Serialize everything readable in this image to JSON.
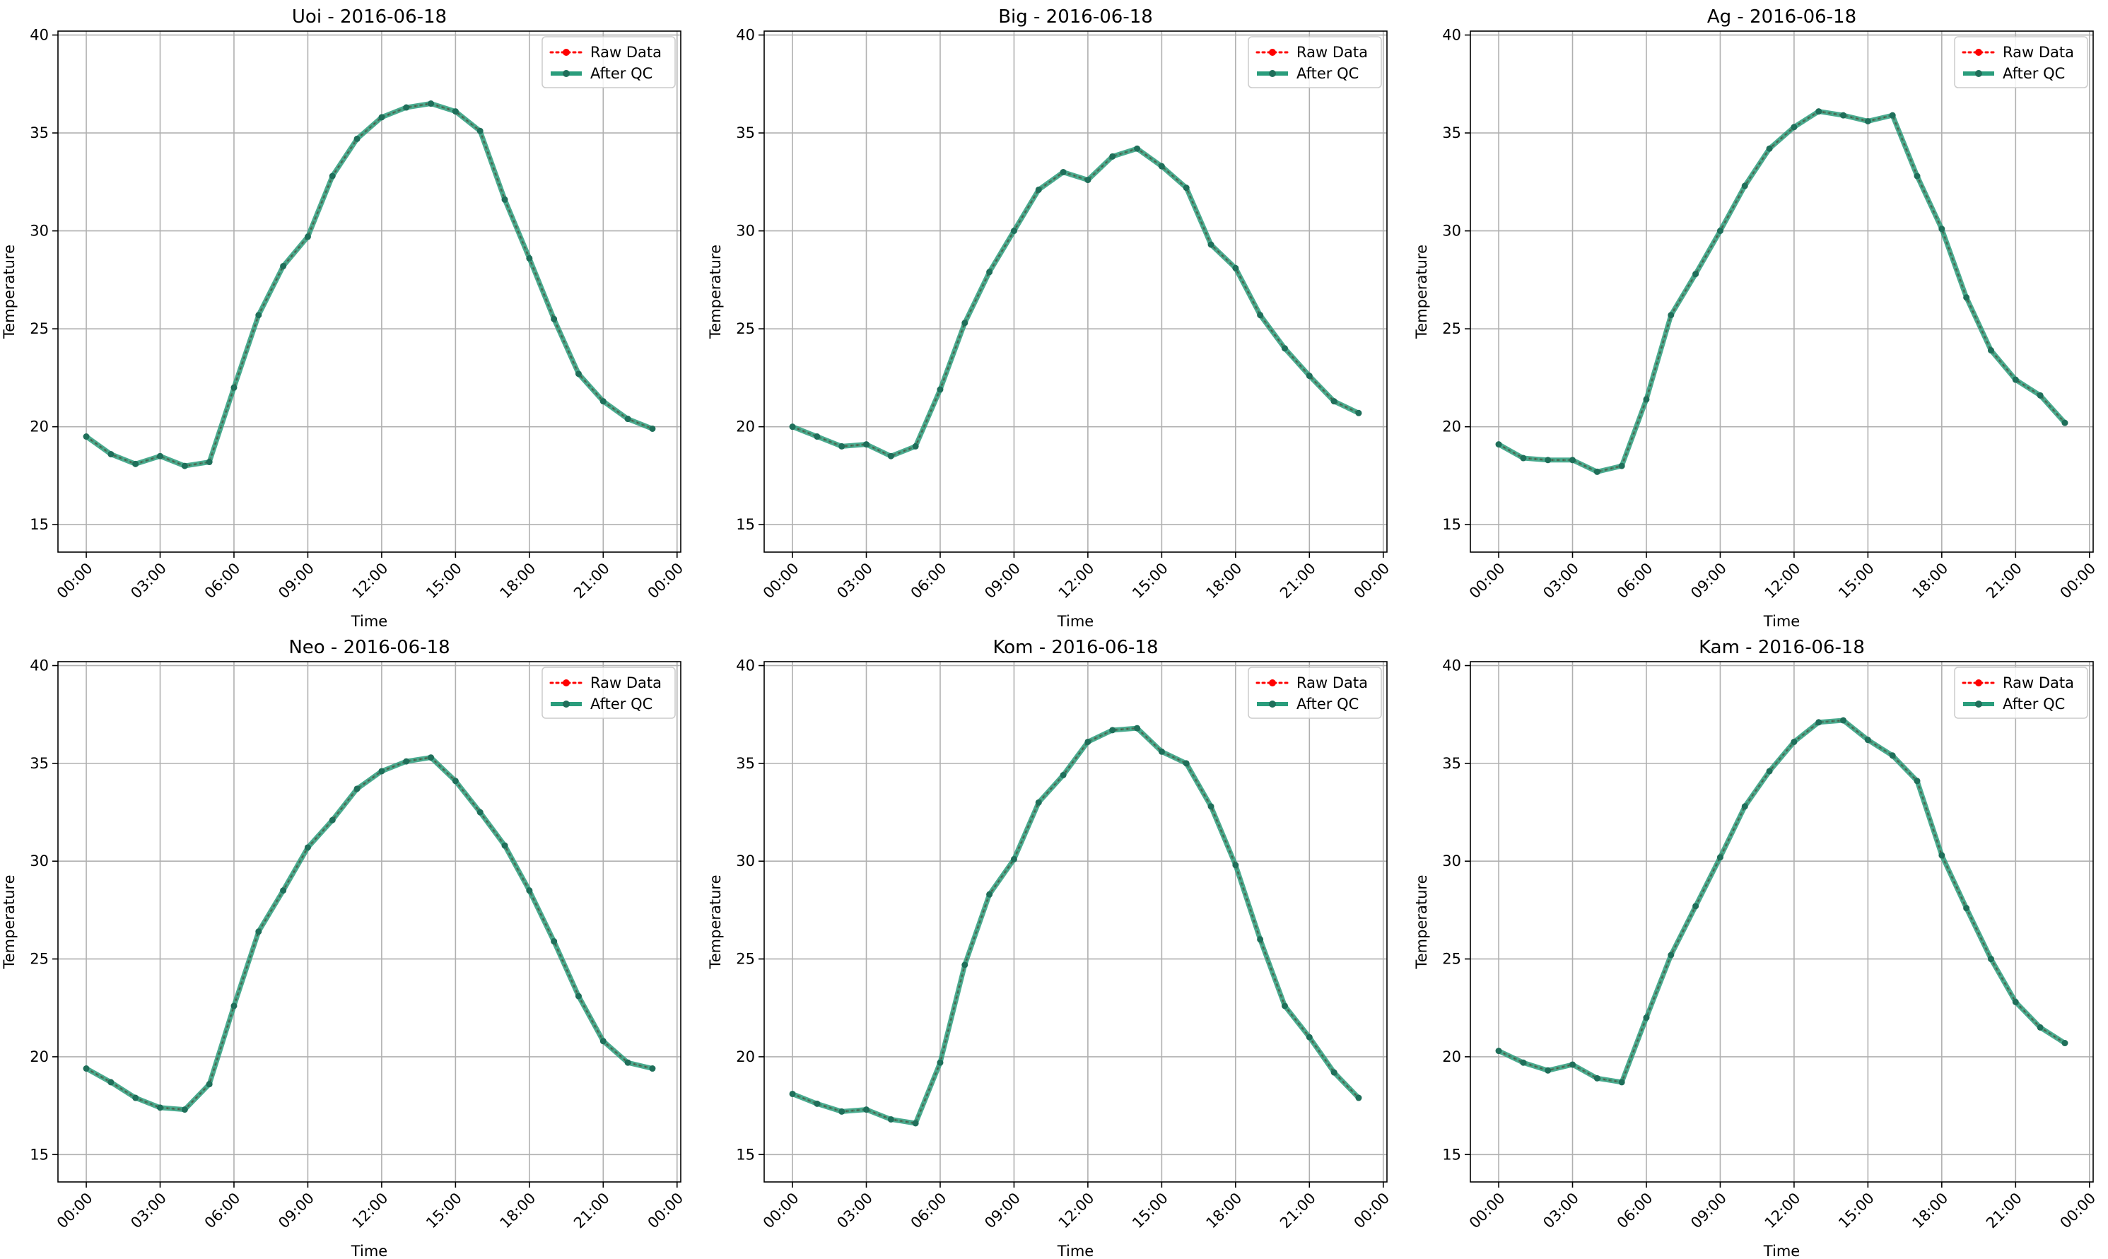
{
  "figure": {
    "raw_color": "#ff0000",
    "qc_color": "#2a9d7c",
    "marker_color": "#1f6f5a"
  },
  "chart_data": [
    {
      "type": "line",
      "title": "Uoi - 2016-06-18",
      "xlabel": "Time",
      "ylabel": "Temperature",
      "x_hours": [
        0,
        1,
        2,
        3,
        4,
        5,
        6,
        7,
        8,
        9,
        10,
        11,
        12,
        13,
        14,
        15,
        16,
        17,
        18,
        19,
        20,
        21,
        22,
        23
      ],
      "xticks": [
        "00:00",
        "03:00",
        "06:00",
        "09:00",
        "12:00",
        "15:00",
        "18:00",
        "21:00",
        "00:00"
      ],
      "xlim_hours": [
        -1.15,
        24.15
      ],
      "ylim": [
        13.6,
        40.2
      ],
      "yticks": [
        15,
        20,
        25,
        30,
        35,
        40
      ],
      "grid": true,
      "legend": "top-right",
      "series": [
        {
          "name": "Raw Data",
          "values": [
            19.5,
            18.6,
            18.1,
            18.5,
            18.0,
            18.2,
            22.0,
            25.7,
            28.2,
            29.7,
            32.8,
            34.7,
            35.8,
            36.3,
            36.5,
            36.1,
            35.1,
            31.6,
            28.6,
            25.5,
            22.7,
            21.3,
            20.4,
            19.9
          ]
        },
        {
          "name": "After QC",
          "values": [
            19.5,
            18.6,
            18.1,
            18.5,
            18.0,
            18.2,
            22.0,
            25.7,
            28.2,
            29.7,
            32.8,
            34.7,
            35.8,
            36.3,
            36.5,
            36.1,
            35.1,
            31.6,
            28.6,
            25.5,
            22.7,
            21.3,
            20.4,
            19.9
          ]
        }
      ]
    },
    {
      "type": "line",
      "title": "Big - 2016-06-18",
      "xlabel": "Time",
      "ylabel": "Temperature",
      "x_hours": [
        0,
        1,
        2,
        3,
        4,
        5,
        6,
        7,
        8,
        9,
        10,
        11,
        12,
        13,
        14,
        15,
        16,
        17,
        18,
        19,
        20,
        21,
        22,
        23
      ],
      "xticks": [
        "00:00",
        "03:00",
        "06:00",
        "09:00",
        "12:00",
        "15:00",
        "18:00",
        "21:00",
        "00:00"
      ],
      "xlim_hours": [
        -1.15,
        24.15
      ],
      "ylim": [
        13.6,
        40.2
      ],
      "yticks": [
        15,
        20,
        25,
        30,
        35,
        40
      ],
      "grid": true,
      "legend": "top-right",
      "series": [
        {
          "name": "Raw Data",
          "values": [
            20.0,
            19.5,
            19.0,
            19.1,
            18.5,
            19.0,
            21.9,
            25.3,
            27.9,
            30.0,
            32.1,
            33.0,
            32.6,
            33.8,
            34.2,
            33.3,
            32.2,
            29.3,
            28.1,
            25.7,
            24.0,
            22.6,
            21.3,
            20.7
          ]
        },
        {
          "name": "After QC",
          "values": [
            20.0,
            19.5,
            19.0,
            19.1,
            18.5,
            19.0,
            21.9,
            25.3,
            27.9,
            30.0,
            32.1,
            33.0,
            32.6,
            33.8,
            34.2,
            33.3,
            32.2,
            29.3,
            28.1,
            25.7,
            24.0,
            22.6,
            21.3,
            20.7
          ]
        }
      ]
    },
    {
      "type": "line",
      "title": "Ag - 2016-06-18",
      "xlabel": "Time",
      "ylabel": "Temperature",
      "x_hours": [
        0,
        1,
        2,
        3,
        4,
        5,
        6,
        7,
        8,
        9,
        10,
        11,
        12,
        13,
        14,
        15,
        16,
        17,
        18,
        19,
        20,
        21,
        22,
        23
      ],
      "xticks": [
        "00:00",
        "03:00",
        "06:00",
        "09:00",
        "12:00",
        "15:00",
        "18:00",
        "21:00",
        "00:00"
      ],
      "xlim_hours": [
        -1.15,
        24.15
      ],
      "ylim": [
        13.6,
        40.2
      ],
      "yticks": [
        15,
        20,
        25,
        30,
        35,
        40
      ],
      "grid": true,
      "legend": "top-right",
      "series": [
        {
          "name": "Raw Data",
          "values": [
            19.1,
            18.4,
            18.3,
            18.3,
            17.7,
            18.0,
            21.4,
            25.7,
            27.8,
            30.0,
            32.3,
            34.2,
            35.3,
            36.1,
            35.9,
            35.6,
            35.9,
            32.8,
            30.1,
            26.6,
            23.9,
            22.4,
            21.6,
            20.2
          ]
        },
        {
          "name": "After QC",
          "values": [
            19.1,
            18.4,
            18.3,
            18.3,
            17.7,
            18.0,
            21.4,
            25.7,
            27.8,
            30.0,
            32.3,
            34.2,
            35.3,
            36.1,
            35.9,
            35.6,
            35.9,
            32.8,
            30.1,
            26.6,
            23.9,
            22.4,
            21.6,
            20.2
          ]
        }
      ]
    },
    {
      "type": "line",
      "title": "Neo - 2016-06-18",
      "xlabel": "Time",
      "ylabel": "Temperature",
      "x_hours": [
        0,
        1,
        2,
        3,
        4,
        5,
        6,
        7,
        8,
        9,
        10,
        11,
        12,
        13,
        14,
        15,
        16,
        17,
        18,
        19,
        20,
        21,
        22,
        23
      ],
      "xticks": [
        "00:00",
        "03:00",
        "06:00",
        "09:00",
        "12:00",
        "15:00",
        "18:00",
        "21:00",
        "00:00"
      ],
      "xlim_hours": [
        -1.15,
        24.15
      ],
      "ylim": [
        13.6,
        40.2
      ],
      "yticks": [
        15,
        20,
        25,
        30,
        35,
        40
      ],
      "grid": true,
      "legend": "top-right",
      "series": [
        {
          "name": "Raw Data",
          "values": [
            19.4,
            18.7,
            17.9,
            17.4,
            17.3,
            18.6,
            22.6,
            26.4,
            28.5,
            30.7,
            32.1,
            33.7,
            34.6,
            35.1,
            35.3,
            34.1,
            32.5,
            30.8,
            28.5,
            25.9,
            23.1,
            20.8,
            19.7,
            19.4
          ]
        },
        {
          "name": "After QC",
          "values": [
            19.4,
            18.7,
            17.9,
            17.4,
            17.3,
            18.6,
            22.6,
            26.4,
            28.5,
            30.7,
            32.1,
            33.7,
            34.6,
            35.1,
            35.3,
            34.1,
            32.5,
            30.8,
            28.5,
            25.9,
            23.1,
            20.8,
            19.7,
            19.4
          ]
        }
      ]
    },
    {
      "type": "line",
      "title": "Kom - 2016-06-18",
      "xlabel": "Time",
      "ylabel": "Temperature",
      "x_hours": [
        0,
        1,
        2,
        3,
        4,
        5,
        6,
        7,
        8,
        9,
        10,
        11,
        12,
        13,
        14,
        15,
        16,
        17,
        18,
        19,
        20,
        21,
        22,
        23
      ],
      "xticks": [
        "00:00",
        "03:00",
        "06:00",
        "09:00",
        "12:00",
        "15:00",
        "18:00",
        "21:00",
        "00:00"
      ],
      "xlim_hours": [
        -1.15,
        24.15
      ],
      "ylim": [
        13.6,
        40.2
      ],
      "yticks": [
        15,
        20,
        25,
        30,
        35,
        40
      ],
      "grid": true,
      "legend": "top-right",
      "series": [
        {
          "name": "Raw Data",
          "values": [
            18.1,
            17.6,
            17.2,
            17.3,
            16.8,
            16.6,
            19.7,
            24.7,
            28.3,
            30.1,
            33.0,
            34.4,
            36.1,
            36.7,
            36.8,
            35.6,
            35.0,
            32.8,
            29.8,
            26.0,
            22.6,
            21.0,
            19.2,
            17.9
          ]
        },
        {
          "name": "After QC",
          "values": [
            18.1,
            17.6,
            17.2,
            17.3,
            16.8,
            16.6,
            19.7,
            24.7,
            28.3,
            30.1,
            33.0,
            34.4,
            36.1,
            36.7,
            36.8,
            35.6,
            35.0,
            32.8,
            29.8,
            26.0,
            22.6,
            21.0,
            19.2,
            17.9
          ]
        }
      ]
    },
    {
      "type": "line",
      "title": "Kam - 2016-06-18",
      "xlabel": "Time",
      "ylabel": "Temperature",
      "x_hours": [
        0,
        1,
        2,
        3,
        4,
        5,
        6,
        7,
        8,
        9,
        10,
        11,
        12,
        13,
        14,
        15,
        16,
        17,
        18,
        19,
        20,
        21,
        22,
        23
      ],
      "xticks": [
        "00:00",
        "03:00",
        "06:00",
        "09:00",
        "12:00",
        "15:00",
        "18:00",
        "21:00",
        "00:00"
      ],
      "xlim_hours": [
        -1.15,
        24.15
      ],
      "ylim": [
        13.6,
        40.2
      ],
      "yticks": [
        15,
        20,
        25,
        30,
        35,
        40
      ],
      "grid": true,
      "legend": "top-right",
      "series": [
        {
          "name": "Raw Data",
          "values": [
            20.3,
            19.7,
            19.3,
            19.6,
            18.9,
            18.7,
            22.0,
            25.2,
            27.7,
            30.2,
            32.8,
            34.6,
            36.1,
            37.1,
            37.2,
            36.2,
            35.4,
            34.1,
            30.3,
            27.6,
            25.0,
            22.8,
            21.5,
            20.7
          ]
        },
        {
          "name": "After QC",
          "values": [
            20.3,
            19.7,
            19.3,
            19.6,
            18.9,
            18.7,
            22.0,
            25.2,
            27.7,
            30.2,
            32.8,
            34.6,
            36.1,
            37.1,
            37.2,
            36.2,
            35.4,
            34.1,
            30.3,
            27.6,
            25.0,
            22.8,
            21.5,
            20.7
          ]
        }
      ]
    }
  ]
}
